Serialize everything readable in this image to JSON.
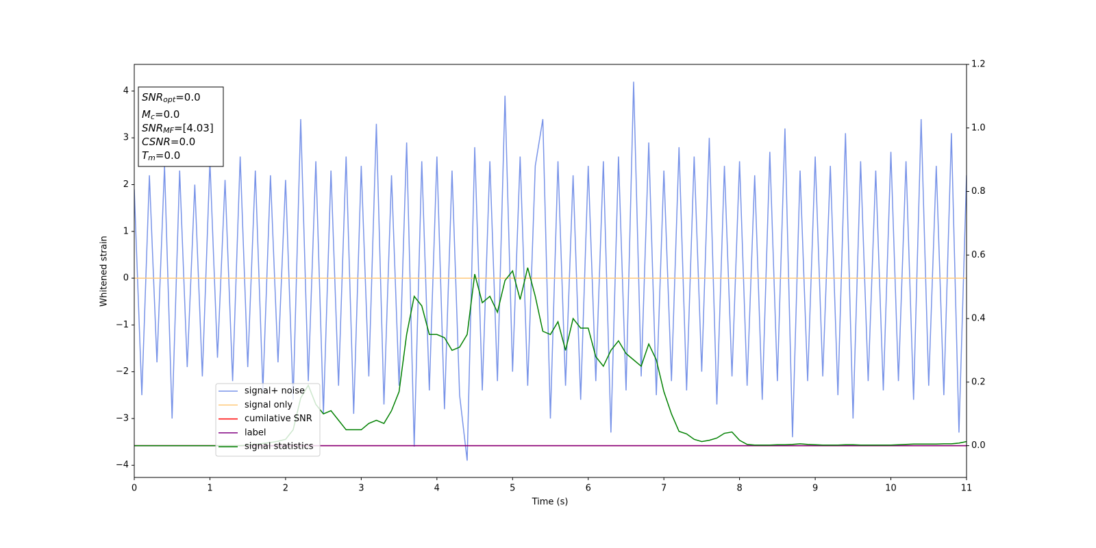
{
  "chart_data": {
    "type": "line",
    "xlabel": "Time (s)",
    "ylabel": "Whitened strain",
    "xlim": [
      0,
      11
    ],
    "xticks": [
      0,
      1,
      2,
      3,
      4,
      5,
      6,
      7,
      8,
      9,
      10,
      11
    ],
    "ylim": [
      -4.26,
      4.57
    ],
    "yticks": [
      {
        "value": -4,
        "label": "−4"
      },
      {
        "value": -3,
        "label": "−3"
      },
      {
        "value": -2,
        "label": "−2"
      },
      {
        "value": -1,
        "label": "−1"
      },
      0,
      1,
      2,
      3,
      4
    ],
    "y2lim": [
      -0.1,
      1.2
    ],
    "y2ticks": [
      {
        "value": 0,
        "label": "0.0"
      },
      0.2,
      0.4,
      0.6,
      0.8,
      {
        "value": 1,
        "label": "1.0"
      },
      1.2
    ],
    "grid": false,
    "legend": "lower left",
    "annotation": [
      {
        "name": "SNR",
        "sub": "opt",
        "text": "=0.0"
      },
      {
        "name": "M",
        "sub": "c",
        "text": "=0.0"
      },
      {
        "name": "SNR",
        "sub": "MF",
        "text": "=[4.03]"
      },
      {
        "name": "CSNR",
        "text": "=0.0"
      },
      {
        "name": "T",
        "sub": "m",
        "text": "=0.0"
      }
    ],
    "x": [
      0,
      0.1,
      0.2,
      0.3,
      0.4,
      0.5,
      0.6,
      0.7,
      0.8,
      0.9,
      1,
      1.1,
      1.2,
      1.3,
      1.4,
      1.5,
      1.6,
      1.7,
      1.8,
      1.9,
      2,
      2.1,
      2.2,
      2.3,
      2.4,
      2.5,
      2.6,
      2.7,
      2.8,
      2.9,
      3,
      3.1,
      3.2,
      3.3,
      3.4,
      3.5,
      3.6,
      3.7,
      3.8,
      3.9,
      4,
      4.1,
      4.2,
      4.3,
      4.4,
      4.5,
      4.6,
      4.7,
      4.8,
      4.9,
      5,
      5.1,
      5.2,
      5.3,
      5.4,
      5.5,
      5.6,
      5.7,
      5.8,
      5.9,
      6,
      6.1,
      6.2,
      6.3,
      6.4,
      6.5,
      6.6,
      6.7,
      6.8,
      6.9,
      7,
      7.1,
      7.2,
      7.3,
      7.4,
      7.5,
      7.6,
      7.7,
      7.8,
      7.9,
      8,
      8.1,
      8.2,
      8.3,
      8.4,
      8.5,
      8.6,
      8.7,
      8.8,
      8.9,
      9,
      9.1,
      9.2,
      9.3,
      9.4,
      9.5,
      9.6,
      9.7,
      9.8,
      9.9,
      10,
      10.1,
      10.2,
      10.3,
      10.4,
      10.5,
      10.6,
      10.7,
      10.8,
      10.9,
      11
    ],
    "series": [
      {
        "name": "signal+ noise",
        "color": "#7893e8",
        "axis": "y",
        "values": [
          1.9,
          -2.5,
          2.2,
          -1.8,
          2.4,
          -3.0,
          2.3,
          -1.9,
          2.0,
          -2.1,
          2.5,
          -1.7,
          2.1,
          -2.2,
          2.6,
          -1.9,
          2.3,
          -2.4,
          2.2,
          -1.8,
          2.1,
          -2.6,
          3.4,
          -2.2,
          2.5,
          -2.9,
          2.3,
          -2.3,
          2.6,
          -2.9,
          2.4,
          -2.1,
          3.3,
          -2.7,
          2.2,
          -2.3,
          2.9,
          -3.6,
          2.5,
          -2.4,
          2.6,
          -2.8,
          2.3,
          -2.5,
          -3.9,
          2.8,
          -2.4,
          2.5,
          -2.2,
          3.9,
          -2.0,
          2.6,
          -2.3,
          2.4,
          3.4,
          -3.0,
          2.5,
          -2.3,
          2.2,
          -2.6,
          2.4,
          -2.2,
          2.5,
          -3.3,
          2.6,
          -2.4,
          4.2,
          -2.1,
          2.9,
          -2.5,
          2.3,
          -2.2,
          2.8,
          -2.4,
          2.6,
          -2.0,
          3.0,
          -2.7,
          2.4,
          -2.1,
          2.5,
          -2.3,
          2.2,
          -2.6,
          2.7,
          -2.2,
          3.2,
          -3.4,
          2.3,
          -2.2,
          2.6,
          -2.1,
          2.4,
          -2.5,
          3.1,
          -3.0,
          2.5,
          -2.2,
          2.3,
          -2.4,
          2.7,
          -2.2,
          2.5,
          -2.6,
          3.4,
          -2.3,
          2.4,
          -2.5,
          3.1,
          -3.3,
          2.2
        ]
      },
      {
        "name": "signal only",
        "color": "#ffc87a",
        "axis": "y",
        "x": [
          0,
          11
        ],
        "values": [
          0,
          0
        ]
      },
      {
        "name": "cumilative SNR",
        "color": "#ff0000",
        "axis": "y2",
        "x": [
          0,
          11
        ],
        "values": [
          0,
          0
        ]
      },
      {
        "name": "label",
        "color": "#800080",
        "axis": "y2",
        "x": [
          0,
          11
        ],
        "values": [
          0,
          0
        ]
      },
      {
        "name": "signal statistics",
        "color": "#008000",
        "axis": "y2",
        "values": [
          0,
          0,
          0,
          0,
          0,
          0,
          0,
          0,
          0,
          0,
          0,
          0,
          0,
          0,
          0,
          0.002,
          0.004,
          0.007,
          0.01,
          0.014,
          0.02,
          0.05,
          0.15,
          0.19,
          0.13,
          0.1,
          0.11,
          0.08,
          0.05,
          0.05,
          0.05,
          0.07,
          0.08,
          0.07,
          0.11,
          0.17,
          0.35,
          0.47,
          0.44,
          0.35,
          0.35,
          0.34,
          0.3,
          0.31,
          0.35,
          0.54,
          0.45,
          0.47,
          0.42,
          0.52,
          0.55,
          0.46,
          0.56,
          0.47,
          0.36,
          0.35,
          0.39,
          0.3,
          0.4,
          0.37,
          0.37,
          0.28,
          0.25,
          0.3,
          0.33,
          0.29,
          0.27,
          0.25,
          0.32,
          0.27,
          0.17,
          0.1,
          0.045,
          0.037,
          0.02,
          0.013,
          0.017,
          0.024,
          0.039,
          0.043,
          0.017,
          0.004,
          0.002,
          0.002,
          0.002,
          0.003,
          0.003,
          0.004,
          0.006,
          0.004,
          0.003,
          0.002,
          0.002,
          0.002,
          0.003,
          0.003,
          0.002,
          0.002,
          0.002,
          0.002,
          0.002,
          0.003,
          0.004,
          0.005,
          0.005,
          0.005,
          0.005,
          0.006,
          0.006,
          0.008,
          0.013
        ]
      }
    ]
  }
}
